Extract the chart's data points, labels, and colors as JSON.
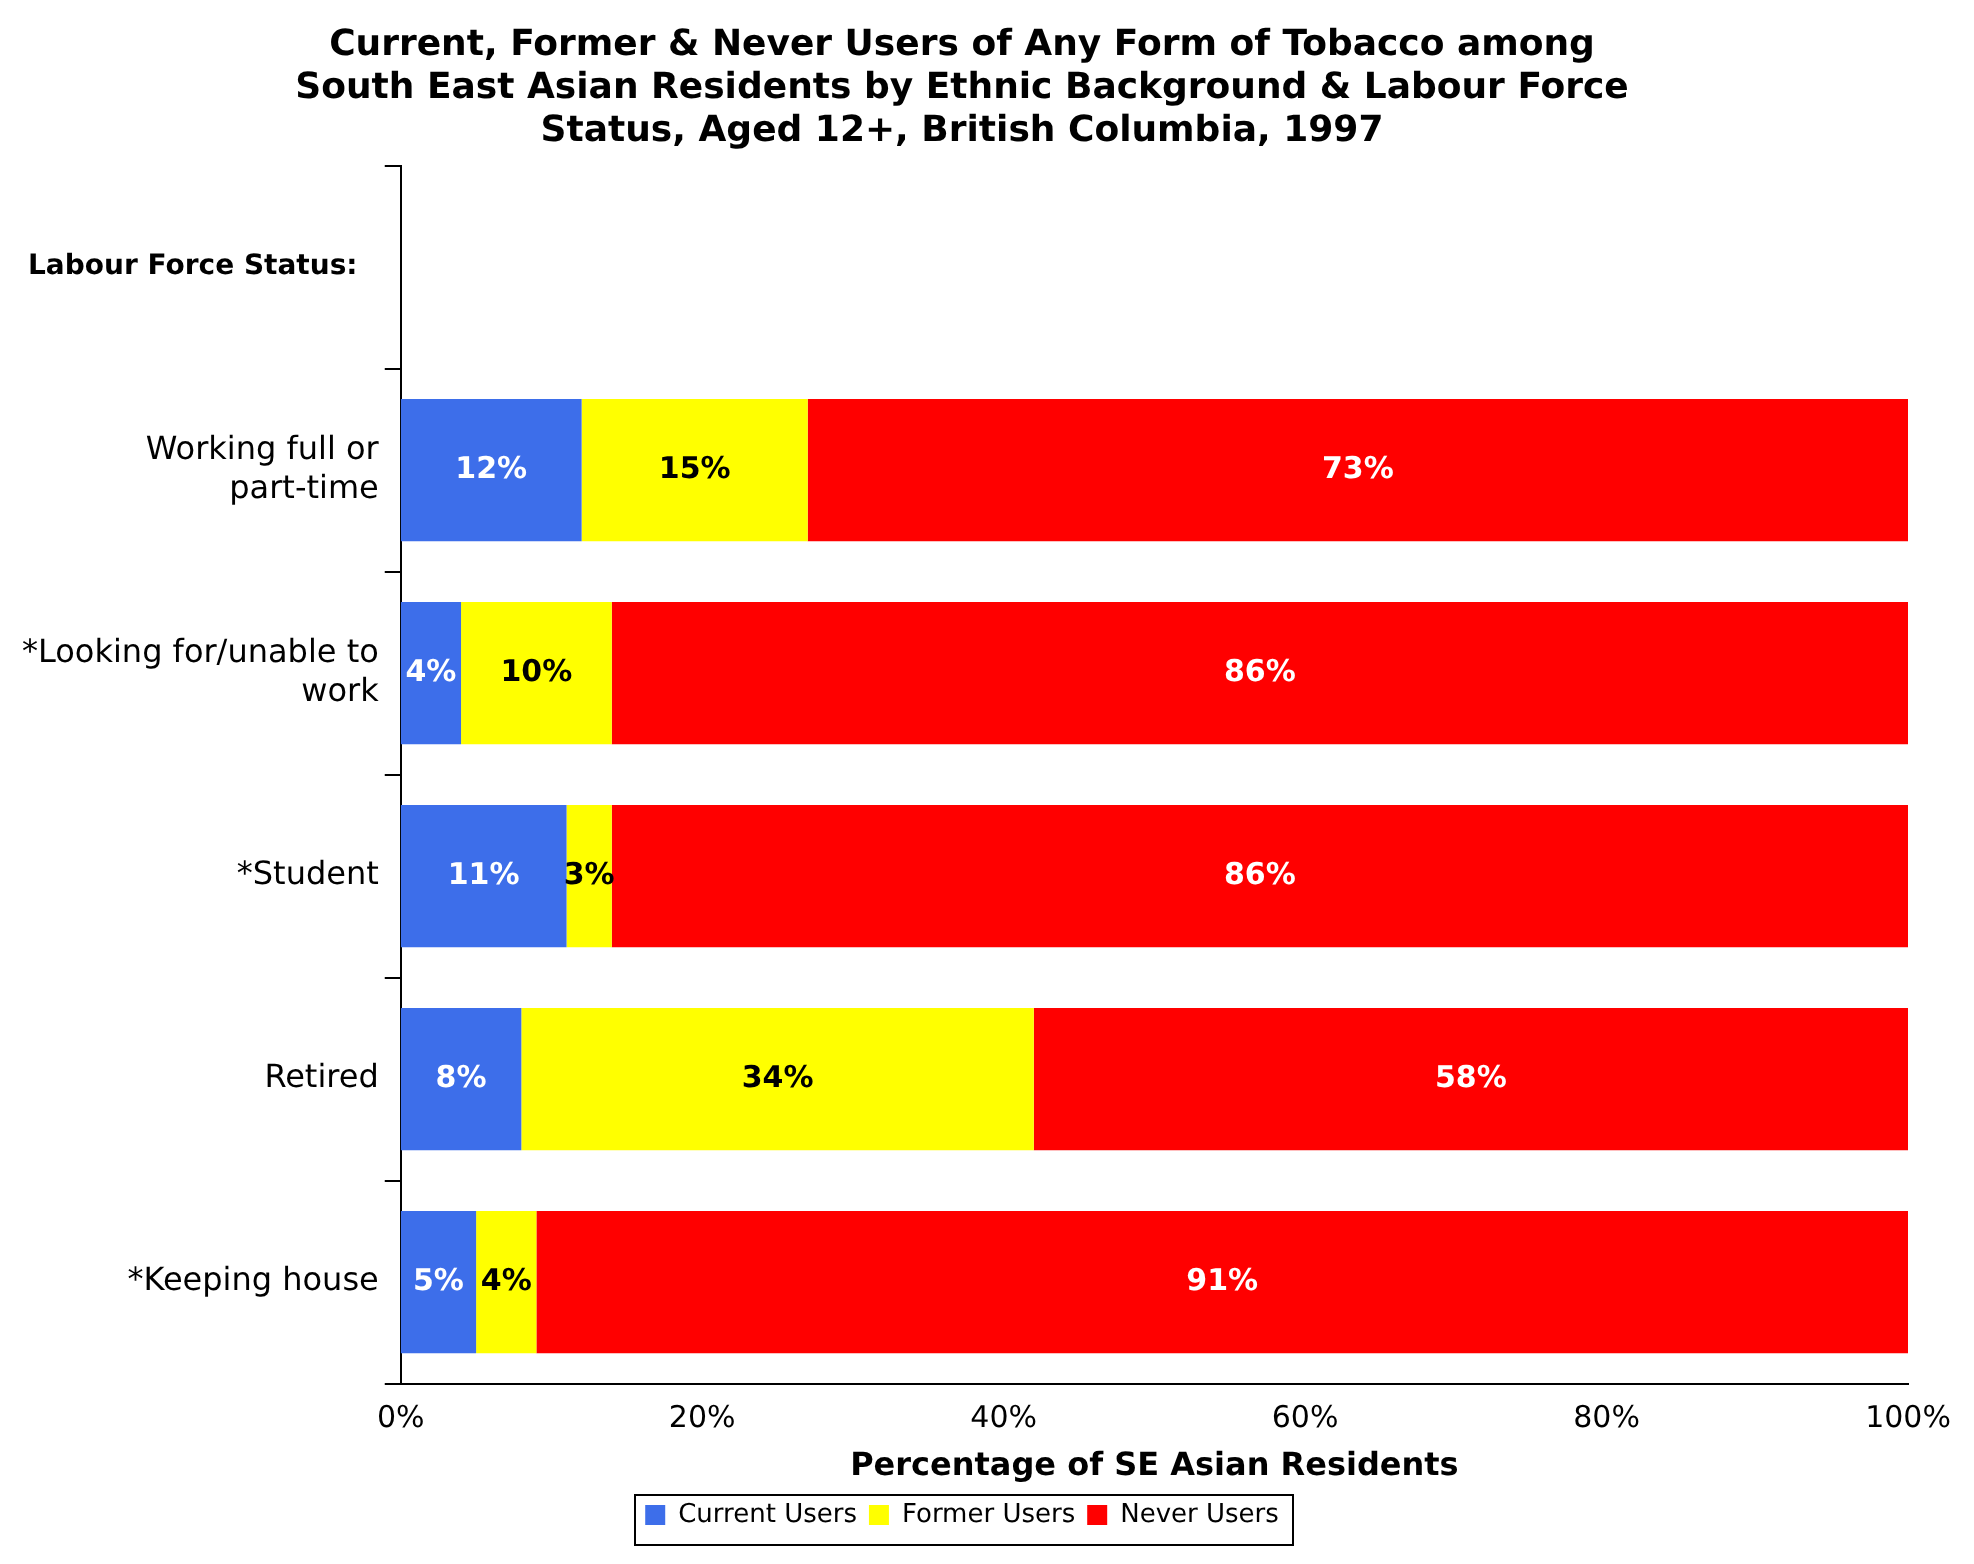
{
  "chart_data": {
    "type": "bar",
    "orientation": "horizontal",
    "stacked": true,
    "title": "Current, Former & Never Users of Any Form of Tobacco among\nSouth East Asian Residents by Ethnic Background & Labour Force\nStatus, Aged 12+, British Columbia, 1997",
    "xlabel": "Percentage of SE Asian Residents",
    "annotations": [
      "Labour Force Status:"
    ],
    "categories": [
      null,
      "Working full or part-time",
      "*Looking for/unable to work",
      "*Student",
      "Retired",
      "*Keeping house"
    ],
    "series": [
      {
        "name": "Current Users",
        "color": "#3d6eea",
        "values": [
          null,
          12,
          4,
          11,
          8,
          5
        ],
        "value_labels": [
          null,
          "12%",
          "4%",
          "11%",
          "8%",
          "5%"
        ]
      },
      {
        "name": "Former Users",
        "color": "#ffff00",
        "values": [
          null,
          15,
          10,
          3,
          34,
          4
        ],
        "value_labels": [
          null,
          "15%",
          "10%",
          "3%",
          "34%",
          "4%"
        ]
      },
      {
        "name": "Never Users",
        "color": "#ff0000",
        "values": [
          null,
          73,
          86,
          86,
          58,
          91
        ],
        "value_labels": [
          null,
          "73%",
          "86%",
          "86%",
          "58%",
          "91%"
        ]
      }
    ],
    "xlim": [
      0,
      100
    ],
    "xticks": [
      {
        "value": 0,
        "label": "0%"
      },
      {
        "value": 20,
        "label": "20%"
      },
      {
        "value": 40,
        "label": "40%"
      },
      {
        "value": 60,
        "label": "60%"
      },
      {
        "value": 80,
        "label": "80%"
      },
      {
        "value": 100,
        "label": "100%"
      }
    ],
    "legend": "bottom",
    "grid": false
  }
}
